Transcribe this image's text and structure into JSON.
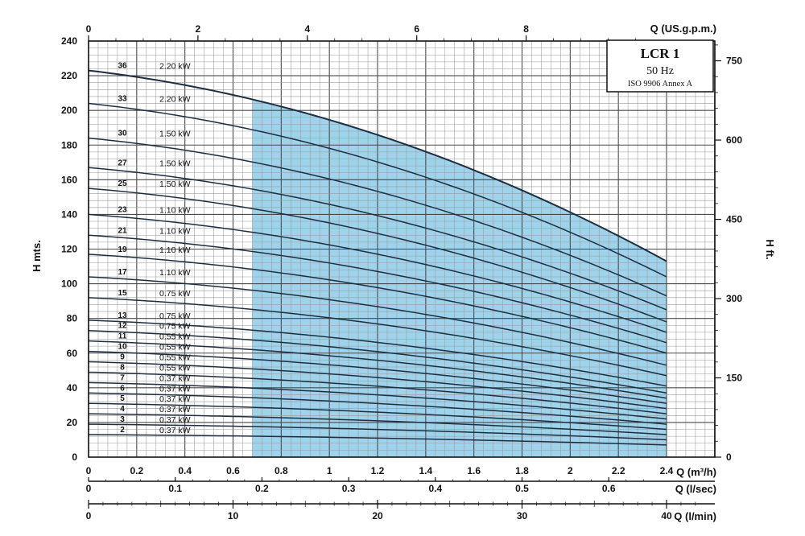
{
  "chart_data": {
    "type": "line",
    "legend_box": {
      "title": "LCR 1",
      "frequency": "50 Hz",
      "standard": "ISO 9906 Annex A"
    },
    "axes": {
      "left": {
        "label": "H mts.",
        "ticks": [
          "0",
          "20",
          "40",
          "60",
          "80",
          "100",
          "120",
          "140",
          "160",
          "180",
          "200",
          "220",
          "240"
        ],
        "ylim": [
          0,
          240
        ]
      },
      "right": {
        "label": "H ft.",
        "ticks": [
          "0",
          "150",
          "300",
          "450",
          "600",
          "750"
        ]
      },
      "top": {
        "label": "Q (US.g.p.m.)",
        "ticks": [
          "0",
          "2",
          "4",
          "6",
          "8"
        ]
      },
      "bottom1": {
        "label": "Q (m³/h)",
        "ticks": [
          "0",
          "0.2",
          "0.4",
          "0.6",
          "0.8",
          "1",
          "1.2",
          "1.4",
          "1.6",
          "1.8",
          "2",
          "2.2",
          "2.4"
        ],
        "xlim": [
          0,
          2.4
        ]
      },
      "bottom2": {
        "label": "Q (l/sec)",
        "ticks": [
          "0",
          "0.1",
          "0.2",
          "0.3",
          "0.4",
          "0.5",
          "0.6"
        ]
      },
      "bottom3": {
        "label": "Q (l/min)",
        "ticks": [
          "0",
          "10",
          "20",
          "30",
          "40"
        ]
      }
    },
    "grid": true,
    "recommended_range_q": [
      0.68,
      2.4
    ],
    "recommended_range_color": "#9fd3ec",
    "curve_color": "#1c2e3f",
    "series": [
      {
        "stages": "36",
        "power": "2.20 kW",
        "h0": 223,
        "h_end": 113
      },
      {
        "stages": "33",
        "power": "2.20 kW",
        "h0": 204,
        "h_end": 104
      },
      {
        "stages": "30",
        "power": "1.50 kW",
        "h0": 184,
        "h_end": 93
      },
      {
        "stages": "27",
        "power": "1.50 kW",
        "h0": 167,
        "h_end": 85
      },
      {
        "stages": "25",
        "power": "1.50 kW",
        "h0": 155,
        "h_end": 78
      },
      {
        "stages": "23",
        "power": "1.10 kW",
        "h0": 140,
        "h_end": 72
      },
      {
        "stages": "21",
        "power": "1.10 kW",
        "h0": 128,
        "h_end": 66
      },
      {
        "stages": "19",
        "power": "1.10 kW",
        "h0": 117,
        "h_end": 60
      },
      {
        "stages": "17",
        "power": "1.10 kW",
        "h0": 104,
        "h_end": 53
      },
      {
        "stages": "15",
        "power": "0.75 kW",
        "h0": 92,
        "h_end": 47
      },
      {
        "stages": "13",
        "power": "0.75 kW",
        "h0": 79,
        "h_end": 41
      },
      {
        "stages": "12",
        "power": "0.75 kW",
        "h0": 73,
        "h_end": 37
      },
      {
        "stages": "11",
        "power": "0.55 kW",
        "h0": 67,
        "h_end": 34
      },
      {
        "stages": "10",
        "power": "0.55 kW",
        "h0": 61,
        "h_end": 31
      },
      {
        "stages": "9",
        "power": "0.55 kW",
        "h0": 55,
        "h_end": 28
      },
      {
        "stages": "8",
        "power": "0.55 kW",
        "h0": 49,
        "h_end": 25
      },
      {
        "stages": "7",
        "power": "0.37 kW",
        "h0": 43,
        "h_end": 22
      },
      {
        "stages": "6",
        "power": "0.37 kW",
        "h0": 37,
        "h_end": 19
      },
      {
        "stages": "5",
        "power": "0.37 kW",
        "h0": 31,
        "h_end": 16
      },
      {
        "stages": "4",
        "power": "0.37 kW",
        "h0": 25,
        "h_end": 13
      },
      {
        "stages": "3",
        "power": "0.37 kW",
        "h0": 19,
        "h_end": 10
      },
      {
        "stages": "2",
        "power": "0.37 kW",
        "h0": 13,
        "h_end": 7
      }
    ]
  }
}
